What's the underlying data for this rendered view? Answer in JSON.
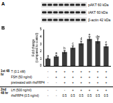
{
  "blot": {
    "label": "A",
    "bands": [
      {
        "name": "pAKT",
        "size": "60 kDa"
      },
      {
        "name": "tAKT",
        "size": "60 kDa"
      },
      {
        "name": "β-actin",
        "size": "42 kDa"
      }
    ]
  },
  "chart_data": {
    "type": "bar",
    "panel_label": "B",
    "y_label": "Fold change (compared to control)",
    "categories": [
      null,
      null,
      null,
      null,
      null,
      null,
      null,
      null
    ],
    "values": [
      1,
      1.3,
      1.9,
      2.5,
      3.1,
      3.7,
      3.4,
      2.7
    ],
    "errors": [
      0.1,
      0.15,
      0.2,
      0.25,
      0.3,
      0.3,
      0.35,
      0.25
    ],
    "letters": [
      "a",
      "a",
      "b",
      "c",
      "d",
      "e",
      "de",
      "c"
    ],
    "color": "#3a3a3a",
    "ylim": [
      0,
      5
    ],
    "yticks": [
      0,
      1,
      2,
      3,
      4,
      5
    ],
    "grid": false,
    "tick_labels": "y"
  },
  "treatments": {
    "groups": [
      {
        "label": "1st 48 hr",
        "rows": [
          {
            "label": "T (0.1 nM)",
            "cells": [
              "-",
              "+",
              "+",
              "+",
              "+",
              "+",
              "+",
              "+"
            ]
          },
          {
            "label": "FSH (50 ng/ml)",
            "cells": [
              "-",
              "+",
              "+",
              "+",
              "+",
              "+",
              "+",
              "+"
            ]
          },
          {
            "label": "pretreated with rhsFRP4",
            "cells": [
              "-",
              "-",
              "+",
              "+",
              "+",
              "+",
              "+",
              "+"
            ]
          }
        ]
      },
      {
        "label": "2nd 48 hr",
        "rows": [
          {
            "label": "LH (500 ng/ml)",
            "cells": [
              "-",
              "-",
              "-",
              "+",
              "+",
              "+",
              "+",
              "+"
            ]
          },
          {
            "label": "rhsFRP4 (0.5 ng/ml)",
            "cells": [
              "-",
              "-",
              "0.5",
              "0.5",
              "0.5",
              "0.5",
              "0.5",
              "0.5"
            ]
          }
        ]
      }
    ]
  }
}
